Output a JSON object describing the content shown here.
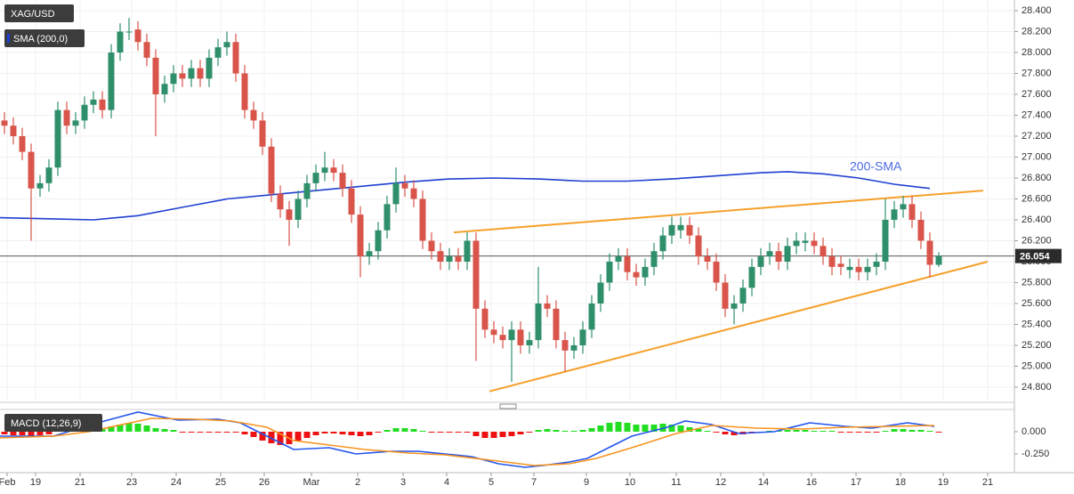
{
  "chart_data": [
    {
      "type": "candlestick",
      "title": "XAG/USD",
      "xlim": [
        -0.5,
        113.5
      ],
      "ylim": [
        24.655,
        28.502
      ],
      "grid": true,
      "up_color": "#2f8f6b",
      "down_color": "#d9544a",
      "yticks": [
        {
          "value": 24.8,
          "label": "24.800"
        },
        {
          "value": 25.0,
          "label": "25.000"
        },
        {
          "value": 25.2,
          "label": "25.200"
        },
        {
          "value": 25.4,
          "label": "25.400"
        },
        {
          "value": 25.6,
          "label": "25.600"
        },
        {
          "value": 25.8,
          "label": "25.800"
        },
        {
          "value": 26.0,
          "label": "26.000"
        },
        {
          "value": 26.2,
          "label": "26.200"
        },
        {
          "value": 26.4,
          "label": "26.400"
        },
        {
          "value": 26.6,
          "label": "26.600"
        },
        {
          "value": 26.8,
          "label": "26.800"
        },
        {
          "value": 27.0,
          "label": "27.000"
        },
        {
          "value": 27.2,
          "label": "27.200"
        },
        {
          "value": 27.4,
          "label": "27.400"
        },
        {
          "value": 27.6,
          "label": "27.600"
        },
        {
          "value": 27.8,
          "label": "27.800"
        },
        {
          "value": 28.0,
          "label": "28.000"
        },
        {
          "value": 28.2,
          "label": "28.200"
        },
        {
          "value": 28.4,
          "label": "28.400"
        }
      ],
      "open": [
        27.35,
        27.3,
        27.2,
        27.05,
        26.7,
        26.75,
        26.9,
        27.45,
        27.3,
        27.35,
        27.5,
        27.55,
        27.45,
        28.0,
        28.2,
        28.22,
        28.1,
        27.95,
        27.6,
        27.7,
        27.8,
        27.75,
        27.85,
        27.75,
        27.95,
        28.05,
        28.1,
        27.8,
        27.45,
        27.35,
        27.1,
        26.65,
        26.5,
        26.4,
        26.6,
        26.75,
        26.85,
        26.9,
        26.85,
        26.7,
        26.45,
        26.05,
        26.1,
        26.3,
        26.55,
        26.75,
        26.7,
        26.6,
        26.2,
        26.1,
        26.0,
        26.05,
        26.0,
        26.2,
        25.55,
        25.35,
        25.3,
        25.25,
        25.35,
        25.2,
        25.25,
        25.6,
        25.55,
        25.25,
        25.15,
        25.2,
        25.35,
        25.6,
        25.8,
        26.0,
        26.05,
        25.9,
        25.85,
        25.95,
        26.1,
        26.25,
        26.3,
        26.35,
        26.25,
        26.05,
        26.0,
        25.8,
        25.55,
        25.6,
        25.75,
        25.95,
        26.05,
        26.1,
        26.0,
        26.15,
        26.18,
        26.2,
        26.15,
        26.05,
        25.98,
        25.92,
        25.95,
        25.9,
        25.95,
        26.0,
        26.4,
        26.5,
        26.55,
        26.4,
        26.2,
        25.97
      ],
      "high": [
        27.43,
        27.38,
        27.28,
        27.13,
        26.83,
        26.98,
        27.53,
        27.53,
        27.43,
        27.58,
        27.63,
        27.63,
        28.08,
        28.28,
        28.33,
        28.3,
        28.18,
        28.03,
        27.78,
        27.88,
        27.88,
        27.93,
        27.93,
        28.03,
        28.13,
        28.2,
        28.18,
        27.88,
        27.53,
        27.43,
        27.18,
        26.73,
        26.58,
        26.68,
        26.83,
        26.93,
        27.05,
        26.98,
        26.93,
        26.78,
        26.53,
        26.18,
        26.38,
        26.63,
        26.9,
        26.83,
        26.78,
        26.68,
        26.28,
        26.18,
        26.13,
        26.13,
        26.28,
        26.28,
        25.63,
        25.43,
        25.38,
        25.43,
        25.43,
        25.33,
        25.95,
        25.68,
        25.63,
        25.33,
        25.28,
        25.43,
        25.68,
        25.88,
        26.08,
        26.13,
        26.13,
        25.98,
        26.03,
        26.18,
        26.33,
        26.43,
        26.43,
        26.43,
        26.33,
        26.13,
        26.08,
        25.88,
        25.68,
        25.83,
        26.03,
        26.13,
        26.18,
        26.18,
        26.23,
        26.28,
        26.28,
        26.28,
        26.23,
        26.13,
        26.06,
        26.03,
        26.03,
        26.03,
        26.08,
        26.6,
        26.58,
        26.63,
        26.63,
        26.48,
        26.28,
        26.09
      ],
      "low": [
        27.22,
        27.12,
        26.97,
        26.2,
        26.62,
        26.67,
        26.82,
        27.22,
        27.22,
        27.27,
        27.42,
        27.37,
        27.37,
        27.92,
        28.12,
        28.02,
        27.87,
        27.2,
        27.52,
        27.62,
        27.67,
        27.67,
        27.67,
        27.67,
        27.87,
        27.97,
        27.72,
        27.37,
        27.27,
        27.02,
        26.57,
        26.42,
        26.15,
        26.32,
        26.52,
        26.67,
        26.77,
        26.77,
        26.62,
        26.37,
        25.85,
        25.97,
        26.02,
        26.22,
        26.47,
        26.62,
        26.52,
        26.12,
        26.02,
        25.92,
        25.92,
        25.92,
        25.92,
        25.05,
        25.27,
        25.22,
        25.17,
        24.85,
        25.12,
        25.12,
        25.17,
        25.47,
        25.17,
        24.95,
        25.07,
        25.12,
        25.27,
        25.52,
        25.72,
        25.92,
        25.82,
        25.77,
        25.77,
        25.87,
        26.02,
        26.17,
        26.22,
        26.17,
        25.97,
        25.92,
        25.72,
        25.47,
        25.4,
        25.52,
        25.67,
        25.87,
        25.97,
        25.92,
        25.92,
        26.07,
        26.1,
        26.07,
        25.97,
        25.87,
        25.87,
        25.84,
        25.82,
        25.82,
        25.87,
        25.92,
        26.32,
        26.42,
        26.32,
        26.12,
        25.85,
        25.95
      ],
      "close": [
        27.3,
        27.2,
        27.05,
        26.7,
        26.75,
        26.9,
        27.45,
        27.3,
        27.35,
        27.5,
        27.55,
        27.45,
        28.0,
        28.2,
        28.2,
        28.1,
        27.95,
        27.6,
        27.7,
        27.8,
        27.75,
        27.85,
        27.75,
        27.95,
        28.05,
        28.1,
        27.8,
        27.45,
        27.35,
        27.1,
        26.65,
        26.5,
        26.4,
        26.6,
        26.75,
        26.85,
        26.9,
        26.85,
        26.7,
        26.45,
        26.05,
        26.1,
        26.3,
        26.55,
        26.75,
        26.7,
        26.6,
        26.2,
        26.1,
        26.0,
        26.05,
        26.0,
        26.2,
        25.55,
        25.35,
        25.3,
        25.25,
        25.35,
        25.2,
        25.25,
        25.6,
        25.55,
        25.25,
        25.15,
        25.2,
        25.35,
        25.6,
        25.8,
        26.0,
        26.05,
        25.9,
        25.85,
        25.95,
        26.1,
        26.25,
        26.35,
        26.35,
        26.25,
        26.05,
        26.0,
        25.8,
        25.55,
        25.6,
        25.75,
        25.95,
        26.05,
        26.1,
        26.0,
        26.15,
        26.2,
        26.2,
        26.15,
        26.05,
        25.95,
        25.95,
        25.95,
        25.9,
        25.95,
        26.0,
        26.4,
        26.5,
        26.55,
        26.4,
        26.2,
        25.97,
        26.054
      ],
      "last_price": 26.054,
      "indicator": {
        "name": "SMA (200,0)",
        "annotation": "200-SMA",
        "color": "#1f3fd1",
        "x": [
          -0.5,
          5,
          10,
          15,
          20,
          25,
          30,
          35,
          40,
          45,
          50,
          55,
          60,
          65,
          70,
          75,
          80,
          85,
          88,
          92,
          96,
          100,
          104
        ],
        "values": [
          26.42,
          26.41,
          26.4,
          26.44,
          26.52,
          26.6,
          26.64,
          26.68,
          26.72,
          26.76,
          26.79,
          26.8,
          26.79,
          26.77,
          26.77,
          26.79,
          26.82,
          26.85,
          26.86,
          26.84,
          26.8,
          26.74,
          26.7
        ]
      },
      "trendlines": [
        {
          "color": "#f5a02a",
          "x": [
            50.5,
            110
          ],
          "values": [
            26.28,
            26.68
          ]
        },
        {
          "color": "#f5a02a",
          "x": [
            54.5,
            110.5
          ],
          "values": [
            24.76,
            26.0
          ]
        }
      ]
    },
    {
      "type": "macd",
      "title": "MACD (12,26,9)",
      "xlim": [
        -0.5,
        113.5
      ],
      "ylim": [
        -0.45,
        0.25
      ],
      "yticks": [
        {
          "value": 0,
          "label": "0.000"
        },
        {
          "value": -0.25,
          "label": "-0.250"
        }
      ],
      "xticks": [
        {
          "value": 0.3,
          "label": "Feb"
        },
        {
          "value": 3.5,
          "label": "19"
        },
        {
          "value": 8.5,
          "label": "21"
        },
        {
          "value": 14.3,
          "label": "23"
        },
        {
          "value": 19.3,
          "label": "24"
        },
        {
          "value": 24.3,
          "label": "25"
        },
        {
          "value": 29.2,
          "label": "26"
        },
        {
          "value": 34.5,
          "label": "Mar"
        },
        {
          "value": 39.7,
          "label": "2"
        },
        {
          "value": 44.8,
          "label": "3"
        },
        {
          "value": 49.7,
          "label": "4"
        },
        {
          "value": 54.7,
          "label": "5"
        },
        {
          "value": 59.5,
          "label": "7"
        },
        {
          "value": 65.4,
          "label": "9"
        },
        {
          "value": 70.3,
          "label": "10"
        },
        {
          "value": 75.5,
          "label": "11"
        },
        {
          "value": 80.5,
          "label": "12"
        },
        {
          "value": 85.3,
          "label": "14"
        },
        {
          "value": 90.7,
          "label": "16"
        },
        {
          "value": 95.7,
          "label": "17"
        },
        {
          "value": 100.7,
          "label": "18"
        },
        {
          "value": 105.5,
          "label": "19"
        },
        {
          "value": 110.5,
          "label": "21"
        }
      ],
      "pos_color": "#22dd22",
      "neg_color": "#ee1111",
      "histogram": [
        -0.03,
        -0.04,
        -0.04,
        -0.05,
        -0.04,
        -0.03,
        0.02,
        0.02,
        0.03,
        0.03,
        0.03,
        0.03,
        0.06,
        0.08,
        0.1,
        0.09,
        0.07,
        0.04,
        0.03,
        0.02,
        -0.01,
        -0.01,
        -0.01,
        -0.01,
        -0.01,
        -0.01,
        -0.01,
        -0.03,
        -0.06,
        -0.1,
        -0.13,
        -0.15,
        -0.14,
        -0.1,
        -0.07,
        -0.04,
        -0.02,
        -0.02,
        -0.03,
        -0.04,
        -0.05,
        -0.04,
        -0.01,
        0.02,
        0.04,
        0.04,
        0.03,
        0.01,
        -0.01,
        -0.01,
        -0.01,
        -0.01,
        -0.01,
        -0.05,
        -0.07,
        -0.07,
        -0.06,
        -0.05,
        -0.03,
        -0.01,
        0.02,
        0.03,
        0.02,
        0.01,
        0.01,
        0.02,
        0.04,
        0.07,
        0.1,
        0.11,
        0.1,
        0.08,
        0.08,
        0.08,
        0.09,
        0.08,
        0.07,
        0.05,
        0.03,
        0.01,
        -0.01,
        -0.03,
        -0.04,
        -0.03,
        -0.02,
        -0.01,
        0.01,
        0.01,
        0.02,
        0.02,
        0.02,
        0.01,
        0.01,
        0.01,
        -0.01,
        -0.01,
        -0.01,
        -0.01,
        -0.01,
        0.01,
        0.03,
        0.03,
        0.02,
        0.02,
        0.01,
        -0.01
      ],
      "series": [
        {
          "color": "#2255ee",
          "x": [
            -0.5,
            5.5,
            10.5,
            15,
            19.5,
            24,
            26.5,
            30.5,
            32.5,
            36.5,
            39.5,
            43.5,
            46.5,
            52.5,
            55.5,
            58.5,
            60.5,
            63.5,
            65.5,
            68.5,
            70.5,
            74.5,
            76.5,
            79.5,
            82.5,
            86.5,
            90.5,
            94.5,
            97.5,
            101.5,
            104.5
          ],
          "values": [
            -0.05,
            -0.05,
            0.1,
            0.22,
            0.13,
            0.14,
            0.1,
            -0.1,
            -0.2,
            -0.18,
            -0.25,
            -0.22,
            -0.22,
            -0.28,
            -0.36,
            -0.4,
            -0.38,
            -0.34,
            -0.3,
            -0.15,
            -0.05,
            0.05,
            0.12,
            0.08,
            -0.02,
            0.0,
            0.1,
            0.06,
            0.04,
            0.1,
            0.06
          ]
        },
        {
          "color": "#f7931e",
          "x": [
            -0.5,
            5.5,
            9.5,
            16.5,
            21.5,
            25.5,
            29.5,
            32.5,
            36.5,
            40.5,
            45.5,
            49.5,
            55.5,
            59.5,
            63.5,
            66.5,
            70.5,
            75.5,
            79.5,
            84.5,
            89.5,
            94.5,
            99.5,
            104.5
          ],
          "values": [
            -0.07,
            -0.05,
            0.0,
            0.15,
            0.14,
            0.12,
            0.05,
            -0.1,
            -0.15,
            -0.2,
            -0.24,
            -0.26,
            -0.33,
            -0.38,
            -0.36,
            -0.3,
            -0.18,
            -0.02,
            0.07,
            0.04,
            0.03,
            0.05,
            0.06,
            0.07
          ]
        }
      ]
    }
  ]
}
